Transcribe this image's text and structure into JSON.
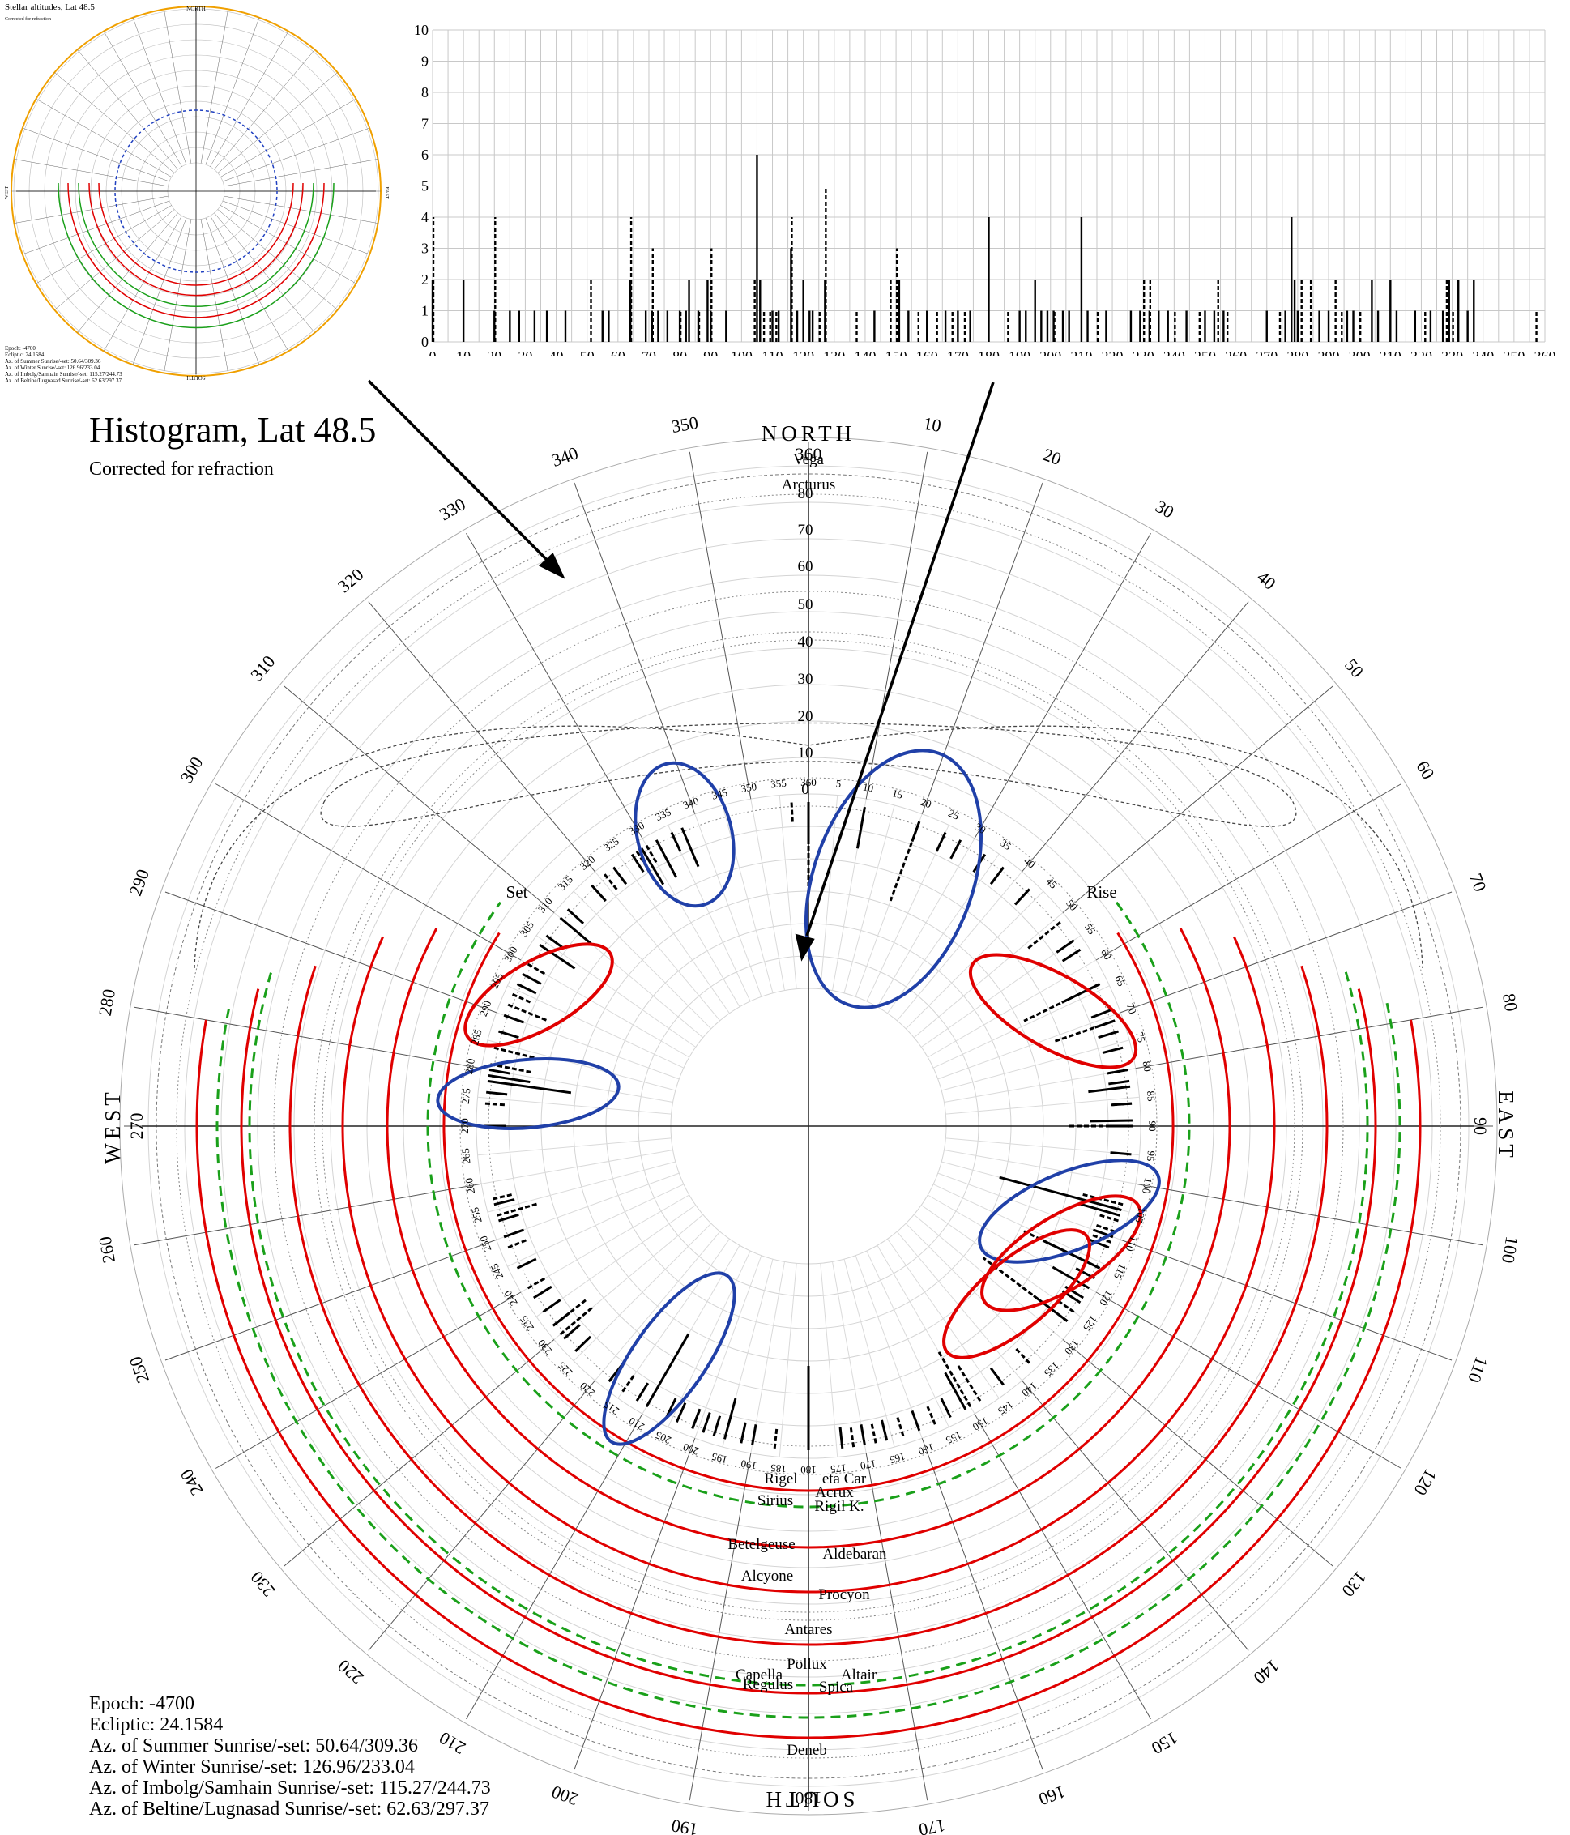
{
  "thumbnail": {
    "title": "Stellar altitudes, Lat 48.5",
    "subtitle": "Corrected for refraction",
    "directions": {
      "north": "NORTH",
      "south": "SOUTH",
      "east": "EAST",
      "west": "WEST"
    },
    "info_lines": [
      "Epoch: -4700",
      "Ecliptic: 24.1584",
      "Az. of Summer Sunrise/-set: 50.64/309.36",
      "Az. of Winter Sunrise/-set: 126.96/233.04",
      "Az. of Imbolg/Samhain Sunrise/-set: 115.27/244.73",
      "Az. of Beltine/Lugnasad Sunrise/-set: 62.63/297.37"
    ]
  },
  "title": "Histogram, Lat 48.5",
  "subtitle": "Corrected for refraction",
  "info_lines": [
    "Epoch: -4700",
    "Ecliptic: 24.1584",
    "Az. of Summer Sunrise/-set: 50.64/309.36",
    "Az. of Winter Sunrise/-set: 126.96/233.04",
    "Az. of Imbolg/Samhain Sunrise/-set: 115.27/244.73",
    "Az. of Beltine/Lugnasad Sunrise/-set: 62.63/297.37"
  ],
  "polar": {
    "directions": {
      "north": "NORTH",
      "south": "SOUTH",
      "east": "EAST",
      "west": "WEST"
    },
    "rise_label": "Rise",
    "set_label": "Set",
    "star_labels": [
      "Vega",
      "Arcturus",
      "Rigel",
      "eta Car",
      "Acrux",
      "Sirius",
      "Rigil K.",
      "Betelgeuse",
      "Aldebaran",
      "Alcyone",
      "Procyon",
      "Antares",
      "Pollux",
      "Capella",
      "Altair",
      "Regulus",
      "Spica",
      "Deneb"
    ],
    "altitude_labels": [
      "0",
      "10",
      "20",
      "30",
      "40",
      "50",
      "60",
      "70",
      "80"
    ],
    "colors": {
      "summer_winter": "#e00000",
      "cross_quarter": "#1aa01a",
      "cluster_blue": "#2040a8",
      "cluster_red": "#e00000"
    }
  },
  "chart_data": [
    {
      "type": "bar",
      "title": "",
      "xlabel": "",
      "ylabel": "",
      "xlim": [
        0,
        360
      ],
      "ylim": [
        0,
        10
      ],
      "x_ticks": [
        0,
        10,
        20,
        30,
        40,
        50,
        60,
        70,
        80,
        90,
        100,
        110,
        120,
        130,
        140,
        150,
        160,
        170,
        180,
        190,
        200,
        210,
        220,
        230,
        240,
        250,
        260,
        270,
        280,
        290,
        300,
        310,
        320,
        330,
        340,
        350,
        360
      ],
      "y_ticks": [
        0,
        1,
        2,
        3,
        4,
        5,
        6,
        7,
        8,
        9,
        10
      ],
      "grid": true,
      "series": [
        {
          "x": [
            0,
            10,
            20,
            25,
            28,
            33,
            37,
            43,
            55,
            57,
            64,
            69,
            71,
            73,
            76,
            80,
            82,
            83,
            86,
            89,
            90,
            95,
            105,
            106,
            110,
            112,
            116,
            118,
            120,
            122,
            123,
            127,
            143,
            151,
            154,
            160,
            166,
            170,
            174,
            180,
            190,
            192,
            195,
            197,
            199,
            201,
            204,
            206,
            210,
            212,
            218,
            226,
            229,
            232,
            235,
            238,
            244,
            250,
            253,
            256,
            270,
            276,
            278,
            279,
            280,
            287,
            290,
            296,
            298,
            304,
            306,
            310,
            312,
            318,
            323,
            327,
            329,
            332,
            335,
            337
          ],
          "values": [
            2,
            2,
            1,
            1,
            1,
            1,
            1,
            1,
            1,
            1,
            2,
            1,
            1,
            1,
            1,
            1,
            1,
            2,
            1,
            2,
            1,
            1,
            6,
            2,
            1,
            1,
            3,
            1,
            2,
            1,
            1,
            2,
            1,
            2,
            1,
            1,
            1,
            1,
            1,
            4,
            1,
            1,
            2,
            1,
            1,
            1,
            1,
            1,
            4,
            1,
            1,
            1,
            1,
            1,
            1,
            1,
            1,
            1,
            1,
            1,
            1,
            1,
            4,
            2,
            1,
            1,
            1,
            1,
            1,
            2,
            1,
            2,
            1,
            1,
            1,
            1,
            2,
            2,
            1,
            2
          ]
        },
        {
          "x": [
            0,
            20,
            51,
            64,
            71,
            80,
            86,
            90,
            104,
            107,
            109,
            111,
            116,
            125,
            127,
            137,
            148,
            150,
            157,
            163,
            168,
            172,
            186,
            201,
            215,
            230,
            232,
            240,
            248,
            254,
            257,
            274,
            281,
            284,
            292,
            294,
            300,
            321,
            328,
            330,
            357
          ],
          "values": [
            4,
            4,
            2,
            4,
            3,
            1,
            1,
            3,
            2,
            1,
            1,
            1,
            4,
            1,
            5,
            1,
            2,
            3,
            1,
            1,
            1,
            1,
            1,
            1,
            1,
            2,
            2,
            1,
            1,
            2,
            1,
            1,
            2,
            2,
            2,
            1,
            1,
            1,
            2,
            1,
            1
          ]
        }
      ]
    }
  ]
}
